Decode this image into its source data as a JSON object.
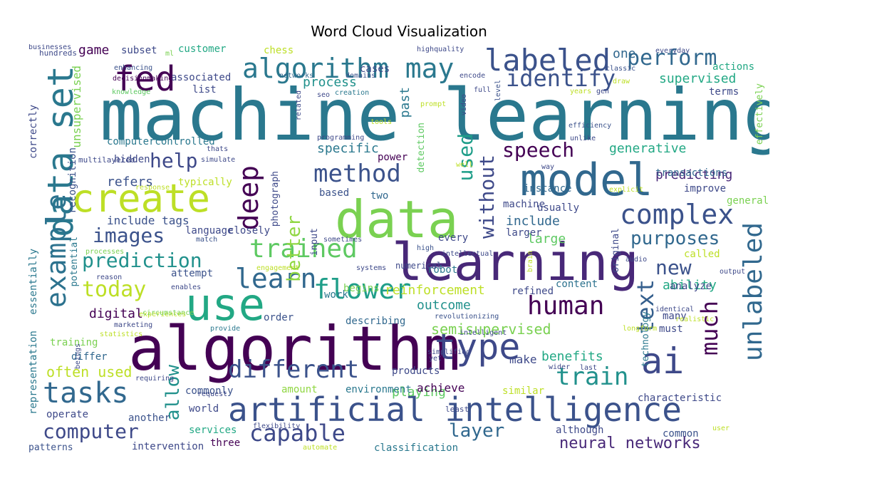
{
  "chart_data": {
    "type": "wordcloud",
    "title": "Word Cloud Visualization",
    "colormap": "viridis",
    "words": [
      {
        "text": "machine learning",
        "weight": 100
      },
      {
        "text": "algorithm",
        "weight": 90
      },
      {
        "text": "data",
        "weight": 72
      },
      {
        "text": "learning",
        "weight": 72
      },
      {
        "text": "use",
        "weight": 68
      },
      {
        "text": "model",
        "weight": 68
      },
      {
        "text": "create",
        "weight": 58
      },
      {
        "text": "artificial intelligence",
        "weight": 54
      },
      {
        "text": "type",
        "weight": 54
      },
      {
        "text": "ai",
        "weight": 52
      },
      {
        "text": "data set",
        "weight": 52
      },
      {
        "text": "algorithm may",
        "weight": 46
      },
      {
        "text": "labeled",
        "weight": 46
      },
      {
        "text": "fed",
        "weight": 52
      },
      {
        "text": "tasks",
        "weight": 44
      },
      {
        "text": "complex",
        "weight": 42
      },
      {
        "text": "example",
        "weight": 42
      },
      {
        "text": "deep",
        "weight": 40
      },
      {
        "text": "learn",
        "weight": 40
      },
      {
        "text": "flower",
        "weight": 40
      },
      {
        "text": "method",
        "weight": 38
      },
      {
        "text": "trained",
        "weight": 38
      },
      {
        "text": "human",
        "weight": 38
      },
      {
        "text": "different",
        "weight": 36
      },
      {
        "text": "train",
        "weight": 36
      },
      {
        "text": "unlabeled",
        "weight": 38
      },
      {
        "text": "capable",
        "weight": 32
      },
      {
        "text": "text",
        "weight": 34
      },
      {
        "text": "much",
        "weight": 34
      },
      {
        "text": "identify",
        "weight": 34
      },
      {
        "text": "perform",
        "weight": 32
      },
      {
        "text": "computer",
        "weight": 30
      },
      {
        "text": "today",
        "weight": 32
      },
      {
        "text": "prediction",
        "weight": 30
      },
      {
        "text": "images",
        "weight": 30
      },
      {
        "text": "help",
        "weight": 30
      },
      {
        "text": "speech",
        "weight": 30
      },
      {
        "text": "used",
        "weight": 30
      },
      {
        "text": "without",
        "weight": 30
      },
      {
        "text": "better",
        "weight": 28
      },
      {
        "text": "new",
        "weight": 30
      },
      {
        "text": "purposes",
        "weight": 28
      },
      {
        "text": "layer",
        "weight": 28
      },
      {
        "text": "allow",
        "weight": 28
      },
      {
        "text": "neural networks",
        "weight": 24
      },
      {
        "text": "often used",
        "weight": 22
      },
      {
        "text": "semisupervised",
        "weight": 22
      },
      {
        "text": "reinforcement",
        "weight": 20
      },
      {
        "text": "outcome",
        "weight": 20
      },
      {
        "text": "digital",
        "weight": 20
      },
      {
        "text": "specific",
        "weight": 20
      },
      {
        "text": "process",
        "weight": 20
      },
      {
        "text": "supervised",
        "weight": 20
      },
      {
        "text": "generative",
        "weight": 18
      },
      {
        "text": "predicting",
        "weight": 18
      },
      {
        "text": "include",
        "weight": 18
      },
      {
        "text": "large",
        "weight": 18
      },
      {
        "text": "refers",
        "weight": 18
      },
      {
        "text": "ability",
        "weight": 18
      },
      {
        "text": "benefits",
        "weight": 18
      },
      {
        "text": "playing",
        "weight": 18
      },
      {
        "text": "achieve",
        "weight": 16
      },
      {
        "text": "make",
        "weight": 16
      },
      {
        "text": "game",
        "weight": 18
      },
      {
        "text": "one",
        "weight": 18
      },
      {
        "text": "past",
        "weight": 18
      },
      {
        "text": "unsupervised",
        "weight": 16
      },
      {
        "text": "include tags",
        "weight": 16
      },
      {
        "text": "closely",
        "weight": 16
      },
      {
        "text": "products",
        "weight": 14
      },
      {
        "text": "describing",
        "weight": 14
      },
      {
        "text": "work",
        "weight": 14
      },
      {
        "text": "order",
        "weight": 14
      },
      {
        "text": "training",
        "weight": 14
      },
      {
        "text": "differ",
        "weight": 14
      },
      {
        "text": "hidden",
        "weight": 14
      },
      {
        "text": "typically",
        "weight": 14
      },
      {
        "text": "instance",
        "weight": 14
      },
      {
        "text": "transactions",
        "weight": 14
      },
      {
        "text": "improve",
        "weight": 13
      },
      {
        "text": "general",
        "weight": 13
      },
      {
        "text": "analyze",
        "weight": 13
      },
      {
        "text": "many",
        "weight": 13
      },
      {
        "text": "must",
        "weight": 13
      },
      {
        "text": "characteristic",
        "weight": 13
      },
      {
        "text": "environment",
        "weight": 12
      },
      {
        "text": "amount",
        "weight": 12
      },
      {
        "text": "similar",
        "weight": 12
      },
      {
        "text": "commonly",
        "weight": 13
      },
      {
        "text": "world",
        "weight": 12
      },
      {
        "text": "another",
        "weight": 12
      },
      {
        "text": "operate",
        "weight": 12
      },
      {
        "text": "services",
        "weight": 12
      },
      {
        "text": "three",
        "weight": 12
      },
      {
        "text": "intervention",
        "weight": 12
      },
      {
        "text": "patterns",
        "weight": 12
      },
      {
        "text": "although",
        "weight": 13
      },
      {
        "text": "classification",
        "weight": 12
      },
      {
        "text": "common",
        "weight": 12
      },
      {
        "text": "called",
        "weight": 12
      },
      {
        "text": "content",
        "weight": 12
      },
      {
        "text": "machine",
        "weight": 12
      },
      {
        "text": "usually",
        "weight": 12
      },
      {
        "text": "larger",
        "weight": 12
      },
      {
        "text": "every",
        "weight": 12
      },
      {
        "text": "language",
        "weight": 12
      },
      {
        "text": "attempt",
        "weight": 12
      },
      {
        "text": "refined",
        "weight": 12
      },
      {
        "text": "begins",
        "weight": 12
      },
      {
        "text": "robot",
        "weight": 12
      },
      {
        "text": "two",
        "weight": 12
      },
      {
        "text": "based",
        "weight": 12
      },
      {
        "text": "power",
        "weight": 12
      },
      {
        "text": "computercontrolled",
        "weight": 12
      },
      {
        "text": "associated",
        "weight": 12
      },
      {
        "text": "list",
        "weight": 12
      },
      {
        "text": "customer",
        "weight": 12
      },
      {
        "text": "subset",
        "weight": 12
      },
      {
        "text": "chess",
        "weight": 12
      },
      {
        "text": "cases",
        "weight": 12
      },
      {
        "text": "actions",
        "weight": 12
      },
      {
        "text": "terms",
        "weight": 12
      },
      {
        "text": "recognition",
        "weight": 12
      },
      {
        "text": "correctly",
        "weight": 12
      },
      {
        "text": "representation",
        "weight": 12
      },
      {
        "text": "essentially",
        "weight": 12
      },
      {
        "text": "potential",
        "weight": 11
      },
      {
        "text": "effectively",
        "weight": 11
      },
      {
        "text": "technology",
        "weight": 11
      },
      {
        "text": "original",
        "weight": 11
      },
      {
        "text": "photograph",
        "weight": 11
      },
      {
        "text": "detection",
        "weight": 11
      },
      {
        "text": "input",
        "weight": 11
      },
      {
        "text": "numerical",
        "weight": 9
      },
      {
        "text": "multilayered",
        "weight": 9
      },
      {
        "text": "hundreds",
        "weight": 9
      },
      {
        "text": "ml",
        "weight": 8
      },
      {
        "text": "enhancing",
        "weight": 8
      },
      {
        "text": "decisionmaking",
        "weight": 8
      },
      {
        "text": "knowledge",
        "weight": 8
      },
      {
        "text": "networks",
        "weight": 8
      },
      {
        "text": "domains",
        "weight": 8
      },
      {
        "text": "creation",
        "weight": 8
      },
      {
        "text": "highquality",
        "weight": 8
      },
      {
        "text": "encode",
        "weight": 8
      },
      {
        "text": "classic",
        "weight": 8
      },
      {
        "text": "everyday",
        "weight": 8
      },
      {
        "text": "draw",
        "weight": 8
      },
      {
        "text": "gen",
        "weight": 8
      },
      {
        "text": "years",
        "weight": 8
      },
      {
        "text": "full",
        "weight": 8
      },
      {
        "text": "level",
        "weight": 8
      },
      {
        "text": "video",
        "weight": 8
      },
      {
        "text": "prompt",
        "weight": 8
      },
      {
        "text": "related",
        "weight": 8
      },
      {
        "text": "seo",
        "weight": 8
      },
      {
        "text": "tools",
        "weight": 8
      },
      {
        "text": "programming",
        "weight": 8
      },
      {
        "text": "thats",
        "weight": 8
      },
      {
        "text": "simulate",
        "weight": 8
      },
      {
        "text": "response",
        "weight": 8
      },
      {
        "text": "match",
        "weight": 8
      },
      {
        "text": "processes",
        "weight": 8
      },
      {
        "text": "reason",
        "weight": 8
      },
      {
        "text": "enables",
        "weight": 8
      },
      {
        "text": "engagement",
        "weight": 8
      },
      {
        "text": "systems",
        "weight": 8
      },
      {
        "text": "sometimes",
        "weight": 8
      },
      {
        "text": "high",
        "weight": 8
      },
      {
        "text": "intellectual",
        "weight": 8
      },
      {
        "text": "brain",
        "weight": 8
      },
      {
        "text": "audio",
        "weight": 8
      },
      {
        "text": "output",
        "weight": 8
      },
      {
        "text": "explicit",
        "weight": 8
      },
      {
        "text": "unlike",
        "weight": 8
      },
      {
        "text": "efficiency",
        "weight": 8
      },
      {
        "text": "well",
        "weight": 8
      },
      {
        "text": "way",
        "weight": 8
      },
      {
        "text": "experiences",
        "weight": 8
      },
      {
        "text": "circumstance",
        "weight": 8
      },
      {
        "text": "marketing",
        "weight": 8
      },
      {
        "text": "statistics",
        "weight": 8
      },
      {
        "text": "provide",
        "weight": 8
      },
      {
        "text": "revolutionizing",
        "weight": 9
      },
      {
        "text": "intelligent",
        "weight": 8
      },
      {
        "text": "identical",
        "weight": 8
      },
      {
        "text": "realistic",
        "weight": 8
      },
      {
        "text": "longform",
        "weight": 8
      },
      {
        "text": "simplified",
        "weight": 8
      },
      {
        "text": "yet",
        "weight": 8
      },
      {
        "text": "beings",
        "weight": 8
      },
      {
        "text": "requiring",
        "weight": 8
      },
      {
        "text": "request",
        "weight": 8
      },
      {
        "text": "flexibility",
        "weight": 8
      },
      {
        "text": "wider",
        "weight": 8
      },
      {
        "text": "last",
        "weight": 8
      },
      {
        "text": "least",
        "weight": 8
      },
      {
        "text": "user",
        "weight": 9
      },
      {
        "text": "automate",
        "weight": 8
      },
      {
        "text": "businesses",
        "weight": 8
      }
    ]
  }
}
